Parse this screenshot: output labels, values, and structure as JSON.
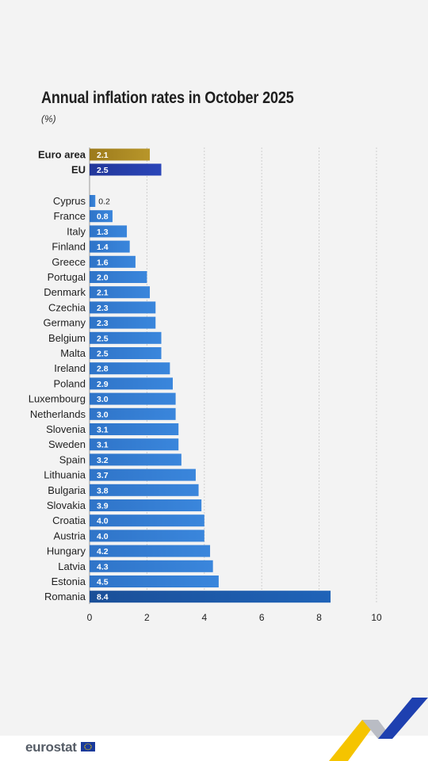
{
  "title": "Annual inflation rates in October 2025",
  "subtitle": "(%)",
  "brand": "eurostat",
  "colors": {
    "euro_area_bar": "#b8962a",
    "eu_bar": "#2a45b8",
    "country_bar": "#3a86dc",
    "romania_bar": "#1f63b8",
    "background": "#f3f3f3"
  },
  "chart_data": {
    "type": "bar",
    "orientation": "horizontal",
    "title": "Annual inflation rates in October 2025",
    "subtitle": "(%)",
    "xlabel": "",
    "ylabel": "",
    "xlim": [
      0,
      10
    ],
    "xticks": [
      0,
      2,
      4,
      6,
      8,
      10
    ],
    "grid": "vertical dashed",
    "aggregates": [
      {
        "name": "Euro area",
        "value": 2.1,
        "label": "2.1"
      },
      {
        "name": "EU",
        "value": 2.5,
        "label": "2.5"
      }
    ],
    "countries": [
      {
        "name": "Cyprus",
        "value": 0.2,
        "label": "0.2"
      },
      {
        "name": "France",
        "value": 0.8,
        "label": "0.8"
      },
      {
        "name": "Italy",
        "value": 1.3,
        "label": "1.3"
      },
      {
        "name": "Finland",
        "value": 1.4,
        "label": "1.4"
      },
      {
        "name": "Greece",
        "value": 1.6,
        "label": "1.6"
      },
      {
        "name": "Portugal",
        "value": 2.0,
        "label": "2.0"
      },
      {
        "name": "Denmark",
        "value": 2.1,
        "label": "2.1"
      },
      {
        "name": "Czechia",
        "value": 2.3,
        "label": "2.3"
      },
      {
        "name": "Germany",
        "value": 2.3,
        "label": "2.3"
      },
      {
        "name": "Belgium",
        "value": 2.5,
        "label": "2.5"
      },
      {
        "name": "Malta",
        "value": 2.5,
        "label": "2.5"
      },
      {
        "name": "Ireland",
        "value": 2.8,
        "label": "2.8"
      },
      {
        "name": "Poland",
        "value": 2.9,
        "label": "2.9"
      },
      {
        "name": "Luxembourg",
        "value": 3.0,
        "label": "3.0"
      },
      {
        "name": "Netherlands",
        "value": 3.0,
        "label": "3.0"
      },
      {
        "name": "Slovenia",
        "value": 3.1,
        "label": "3.1"
      },
      {
        "name": "Sweden",
        "value": 3.1,
        "label": "3.1"
      },
      {
        "name": "Spain",
        "value": 3.2,
        "label": "3.2"
      },
      {
        "name": "Lithuania",
        "value": 3.7,
        "label": "3.7"
      },
      {
        "name": "Bulgaria",
        "value": 3.8,
        "label": "3.8"
      },
      {
        "name": "Slovakia",
        "value": 3.9,
        "label": "3.9"
      },
      {
        "name": "Croatia",
        "value": 4.0,
        "label": "4.0"
      },
      {
        "name": "Austria",
        "value": 4.0,
        "label": "4.0"
      },
      {
        "name": "Hungary",
        "value": 4.2,
        "label": "4.2"
      },
      {
        "name": "Latvia",
        "value": 4.3,
        "label": "4.3"
      },
      {
        "name": "Estonia",
        "value": 4.5,
        "label": "4.5"
      },
      {
        "name": "Romania",
        "value": 8.4,
        "label": "8.4"
      }
    ]
  }
}
